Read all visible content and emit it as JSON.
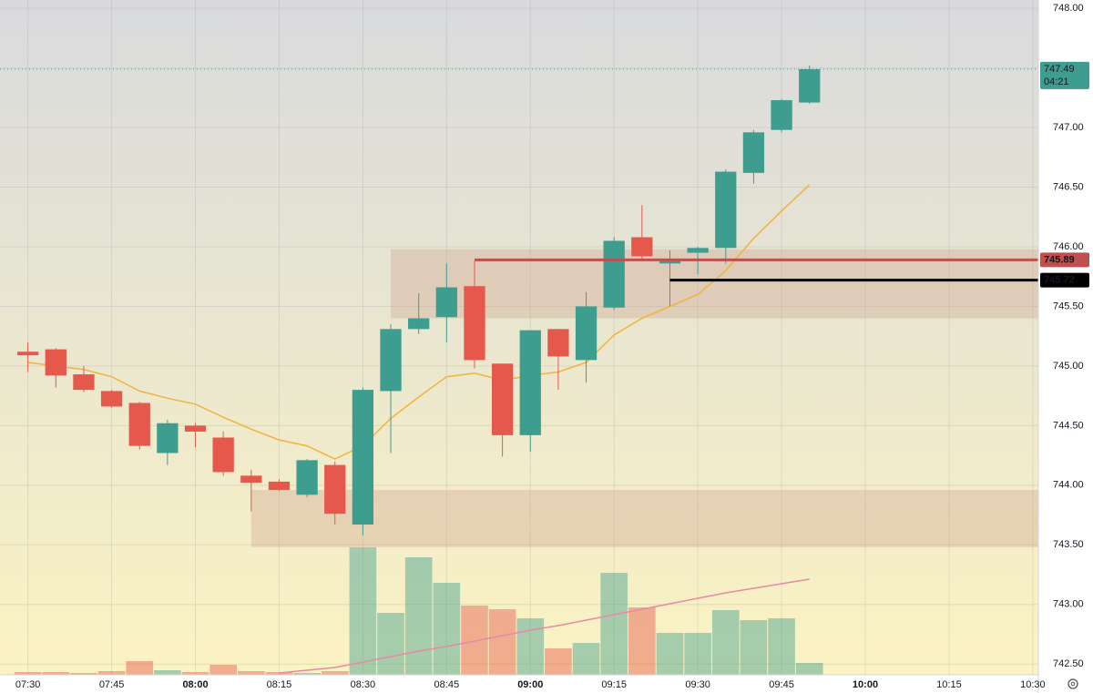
{
  "chart_data": {
    "type": "candlestick",
    "x": [
      "07:30",
      "07:35",
      "07:40",
      "07:45",
      "07:50",
      "07:55",
      "08:00",
      "08:05",
      "08:10",
      "08:15",
      "08:20",
      "08:25",
      "08:30",
      "08:35",
      "08:40",
      "08:45",
      "08:50",
      "08:55",
      "09:00",
      "09:05",
      "09:10",
      "09:15",
      "09:20",
      "09:25",
      "09:30",
      "09:35",
      "09:40",
      "09:45",
      "09:50"
    ],
    "open": [
      745.12,
      745.14,
      744.93,
      744.79,
      744.69,
      744.27,
      744.5,
      744.4,
      744.08,
      744.03,
      743.92,
      744.17,
      743.67,
      744.79,
      745.31,
      745.41,
      745.67,
      745.02,
      744.42,
      745.31,
      745.05,
      745.49,
      746.08,
      745.86,
      745.95,
      745.99,
      746.62,
      746.98,
      747.21
    ],
    "high": [
      745.2,
      745.15,
      745.0,
      744.8,
      744.7,
      744.55,
      744.52,
      744.45,
      744.13,
      744.05,
      744.22,
      744.2,
      744.82,
      745.35,
      745.61,
      745.86,
      745.88,
      745.02,
      745.3,
      745.31,
      745.62,
      746.08,
      746.35,
      745.97,
      746.0,
      746.65,
      746.98,
      747.24,
      747.52
    ],
    "low": [
      744.95,
      744.82,
      744.78,
      744.65,
      744.3,
      744.17,
      744.32,
      744.08,
      743.78,
      743.95,
      743.9,
      743.67,
      743.58,
      744.27,
      745.27,
      745.2,
      744.98,
      744.24,
      744.28,
      744.8,
      744.86,
      745.47,
      745.88,
      745.5,
      745.77,
      745.86,
      746.53,
      746.96,
      747.2
    ],
    "close": [
      745.09,
      744.92,
      744.8,
      744.66,
      744.33,
      744.52,
      744.45,
      744.11,
      744.02,
      743.96,
      744.21,
      743.76,
      744.8,
      745.31,
      745.4,
      745.66,
      745.05,
      744.42,
      745.3,
      745.08,
      745.5,
      746.05,
      745.92,
      745.88,
      745.99,
      746.63,
      746.96,
      747.23,
      747.49
    ],
    "up_color": "#3d9e8f",
    "down_color": "#e5584c",
    "ma": [
      745.03,
      745.0,
      744.97,
      744.91,
      744.79,
      744.73,
      744.68,
      744.57,
      744.47,
      744.38,
      744.33,
      744.22,
      744.33,
      744.56,
      744.74,
      744.91,
      744.94,
      744.88,
      744.92,
      744.95,
      745.03,
      745.26,
      745.4,
      745.5,
      745.6,
      745.8,
      746.07,
      746.3,
      746.52
    ],
    "ma_color": "#f0b43c",
    "volume": [
      3,
      3,
      2,
      4,
      15,
      5,
      3,
      11,
      4,
      3,
      2,
      4,
      140,
      68,
      129,
      101,
      76,
      72,
      62,
      29,
      35,
      112,
      74,
      46,
      46,
      71,
      60,
      62,
      13
    ],
    "volume_ma": [
      null,
      null,
      null,
      null,
      null,
      null,
      null,
      null,
      null,
      2,
      5,
      8,
      14,
      20,
      26,
      31,
      37,
      43,
      49,
      54,
      60,
      66,
      72,
      78,
      84,
      90,
      95,
      100,
      105
    ],
    "volume_ma_color": "#e888a8",
    "zones": [
      {
        "low": 743.48,
        "high": 743.96,
        "start": "08:10"
      },
      {
        "low": 745.4,
        "high": 745.98,
        "start": "08:35"
      }
    ],
    "levels": [
      {
        "value": 745.89,
        "start": "08:50",
        "color": "#c0504d"
      },
      {
        "value": 745.72,
        "start": "09:25",
        "color": "#000000"
      }
    ],
    "last_price": 747.49,
    "countdown": "04:21",
    "session_start": "08:30",
    "xlim": [
      "07:25",
      "10:31"
    ],
    "xticks": [
      "07:30",
      "07:45",
      "08:00",
      "08:15",
      "08:30",
      "08:45",
      "09:00",
      "09:15",
      "09:30",
      "09:45",
      "10:00",
      "10:15",
      "10:30"
    ],
    "ylim": [
      742.41,
      748.07
    ],
    "yticks": [
      {
        "value": 742.5,
        "label": "742.50"
      },
      {
        "value": 743,
        "label": "743.00"
      },
      {
        "value": 743.5,
        "label": "743.50"
      },
      {
        "value": 744,
        "label": "744.00"
      },
      {
        "value": 744.5,
        "label": "744.50"
      },
      {
        "value": 745,
        "label": "745.00"
      },
      {
        "value": 745.5,
        "label": "745.50"
      },
      {
        "value": 746,
        "label": "746.00"
      },
      {
        "value": 746.5,
        "label": "746.50"
      },
      {
        "value": 747,
        "label": "747.00"
      },
      {
        "value": 747.5,
        "label": "747.50"
      },
      {
        "value": 748,
        "label": "748.00"
      }
    ],
    "grid": true
  }
}
